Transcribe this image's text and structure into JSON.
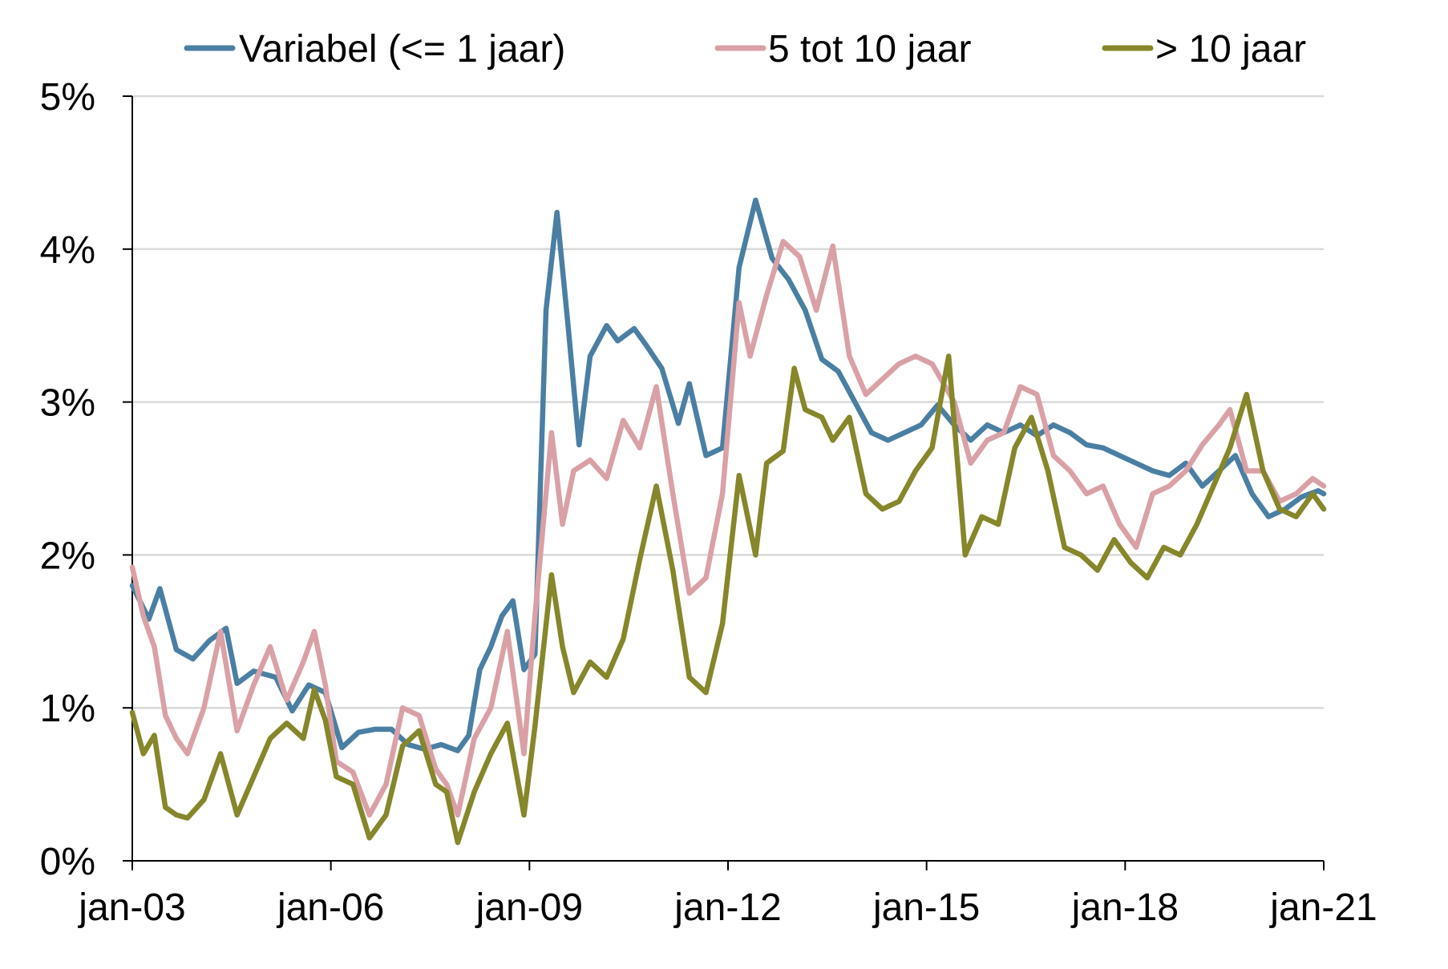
{
  "chart_data": {
    "type": "line",
    "title": "",
    "xlabel": "",
    "ylabel": "",
    "x_ticks": [
      "jan-03",
      "jan-06",
      "jan-09",
      "jan-12",
      "jan-15",
      "jan-18",
      "jan-21"
    ],
    "y_ticks": [
      "0%",
      "1%",
      "2%",
      "3%",
      "4%",
      "5%"
    ],
    "xlim": [
      "2003-01",
      "2021-01"
    ],
    "ylim": [
      0,
      5
    ],
    "grid": "horizontal",
    "legend_position": "top",
    "series": [
      {
        "name": "Variabel (<= 1 jaar)",
        "color": "#4a7fa3",
        "points": [
          [
            "2003-01",
            1.8
          ],
          [
            "2003-04",
            1.58
          ],
          [
            "2003-06",
            1.78
          ],
          [
            "2003-09",
            1.38
          ],
          [
            "2003-12",
            1.32
          ],
          [
            "2004-03",
            1.44
          ],
          [
            "2004-06",
            1.52
          ],
          [
            "2004-08",
            1.16
          ],
          [
            "2004-11",
            1.24
          ],
          [
            "2005-03",
            1.2
          ],
          [
            "2005-06",
            0.98
          ],
          [
            "2005-09",
            1.15
          ],
          [
            "2005-12",
            1.1
          ],
          [
            "2006-03",
            0.74
          ],
          [
            "2006-06",
            0.84
          ],
          [
            "2006-09",
            0.86
          ],
          [
            "2006-12",
            0.86
          ],
          [
            "2007-03",
            0.76
          ],
          [
            "2007-06",
            0.73
          ],
          [
            "2007-09",
            0.76
          ],
          [
            "2007-12",
            0.72
          ],
          [
            "2008-02",
            0.82
          ],
          [
            "2008-04",
            1.25
          ],
          [
            "2008-06",
            1.4
          ],
          [
            "2008-08",
            1.6
          ],
          [
            "2008-10",
            1.7
          ],
          [
            "2008-12",
            1.25
          ],
          [
            "2009-02",
            1.35
          ],
          [
            "2009-04",
            3.6
          ],
          [
            "2009-06",
            4.24
          ],
          [
            "2009-08",
            3.5
          ],
          [
            "2009-10",
            2.72
          ],
          [
            "2009-12",
            3.3
          ],
          [
            "2010-03",
            3.5
          ],
          [
            "2010-05",
            3.4
          ],
          [
            "2010-08",
            3.48
          ],
          [
            "2010-10",
            3.38
          ],
          [
            "2011-01",
            3.22
          ],
          [
            "2011-04",
            2.86
          ],
          [
            "2011-06",
            3.12
          ],
          [
            "2011-09",
            2.65
          ],
          [
            "2011-12",
            2.7
          ],
          [
            "2012-03",
            3.88
          ],
          [
            "2012-06",
            4.32
          ],
          [
            "2012-09",
            3.94
          ],
          [
            "2012-12",
            3.8
          ],
          [
            "2013-03",
            3.6
          ],
          [
            "2013-06",
            3.28
          ],
          [
            "2013-09",
            3.2
          ],
          [
            "2013-12",
            3.0
          ],
          [
            "2014-03",
            2.8
          ],
          [
            "2014-06",
            2.75
          ],
          [
            "2014-09",
            2.8
          ],
          [
            "2014-12",
            2.85
          ],
          [
            "2015-03",
            2.98
          ],
          [
            "2015-06",
            2.85
          ],
          [
            "2015-09",
            2.75
          ],
          [
            "2015-12",
            2.85
          ],
          [
            "2016-03",
            2.8
          ],
          [
            "2016-06",
            2.85
          ],
          [
            "2016-09",
            2.78
          ],
          [
            "2016-12",
            2.85
          ],
          [
            "2017-03",
            2.8
          ],
          [
            "2017-06",
            2.72
          ],
          [
            "2017-09",
            2.7
          ],
          [
            "2017-12",
            2.65
          ],
          [
            "2018-03",
            2.6
          ],
          [
            "2018-06",
            2.55
          ],
          [
            "2018-09",
            2.52
          ],
          [
            "2018-12",
            2.6
          ],
          [
            "2019-03",
            2.45
          ],
          [
            "2019-06",
            2.55
          ],
          [
            "2019-09",
            2.65
          ],
          [
            "2019-12",
            2.4
          ],
          [
            "2020-03",
            2.25
          ],
          [
            "2020-06",
            2.3
          ],
          [
            "2020-09",
            2.38
          ],
          [
            "2020-12",
            2.42
          ],
          [
            "2021-01",
            2.4
          ]
        ]
      },
      {
        "name": "5 tot 10 jaar",
        "color": "#d9a1a6",
        "points": [
          [
            "2003-01",
            1.92
          ],
          [
            "2003-03",
            1.6
          ],
          [
            "2003-05",
            1.4
          ],
          [
            "2003-07",
            0.95
          ],
          [
            "2003-09",
            0.8
          ],
          [
            "2003-11",
            0.7
          ],
          [
            "2004-02",
            1.0
          ],
          [
            "2004-05",
            1.5
          ],
          [
            "2004-08",
            0.85
          ],
          [
            "2004-11",
            1.15
          ],
          [
            "2005-02",
            1.4
          ],
          [
            "2005-05",
            1.05
          ],
          [
            "2005-08",
            1.3
          ],
          [
            "2005-10",
            1.5
          ],
          [
            "2005-12",
            1.15
          ],
          [
            "2006-02",
            0.65
          ],
          [
            "2006-05",
            0.58
          ],
          [
            "2006-08",
            0.3
          ],
          [
            "2006-11",
            0.5
          ],
          [
            "2007-02",
            1.0
          ],
          [
            "2007-05",
            0.95
          ],
          [
            "2007-08",
            0.6
          ],
          [
            "2007-10",
            0.5
          ],
          [
            "2007-12",
            0.3
          ],
          [
            "2008-03",
            0.8
          ],
          [
            "2008-06",
            1.0
          ],
          [
            "2008-09",
            1.5
          ],
          [
            "2008-12",
            0.7
          ],
          [
            "2009-02",
            1.6
          ],
          [
            "2009-05",
            2.8
          ],
          [
            "2009-07",
            2.2
          ],
          [
            "2009-09",
            2.55
          ],
          [
            "2009-12",
            2.62
          ],
          [
            "2010-03",
            2.5
          ],
          [
            "2010-06",
            2.88
          ],
          [
            "2010-09",
            2.7
          ],
          [
            "2010-12",
            3.1
          ],
          [
            "2011-03",
            2.4
          ],
          [
            "2011-06",
            1.75
          ],
          [
            "2011-09",
            1.85
          ],
          [
            "2011-12",
            2.4
          ],
          [
            "2012-03",
            3.65
          ],
          [
            "2012-05",
            3.3
          ],
          [
            "2012-08",
            3.7
          ],
          [
            "2012-11",
            4.05
          ],
          [
            "2013-02",
            3.95
          ],
          [
            "2013-05",
            3.6
          ],
          [
            "2013-08",
            4.02
          ],
          [
            "2013-11",
            3.3
          ],
          [
            "2014-02",
            3.05
          ],
          [
            "2014-05",
            3.15
          ],
          [
            "2014-08",
            3.25
          ],
          [
            "2014-11",
            3.3
          ],
          [
            "2015-02",
            3.25
          ],
          [
            "2015-06",
            3.0
          ],
          [
            "2015-09",
            2.6
          ],
          [
            "2015-12",
            2.75
          ],
          [
            "2016-03",
            2.8
          ],
          [
            "2016-06",
            3.1
          ],
          [
            "2016-09",
            3.05
          ],
          [
            "2016-12",
            2.65
          ],
          [
            "2017-03",
            2.55
          ],
          [
            "2017-06",
            2.4
          ],
          [
            "2017-09",
            2.45
          ],
          [
            "2017-12",
            2.2
          ],
          [
            "2018-03",
            2.05
          ],
          [
            "2018-06",
            2.4
          ],
          [
            "2018-09",
            2.45
          ],
          [
            "2018-12",
            2.55
          ],
          [
            "2019-03",
            2.72
          ],
          [
            "2019-06",
            2.85
          ],
          [
            "2019-08",
            2.95
          ],
          [
            "2019-11",
            2.55
          ],
          [
            "2020-02",
            2.55
          ],
          [
            "2020-05",
            2.35
          ],
          [
            "2020-08",
            2.4
          ],
          [
            "2020-11",
            2.5
          ],
          [
            "2021-01",
            2.45
          ]
        ]
      },
      {
        "name": "> 10 jaar",
        "color": "#86862a",
        "points": [
          [
            "2003-01",
            0.97
          ],
          [
            "2003-03",
            0.7
          ],
          [
            "2003-05",
            0.82
          ],
          [
            "2003-07",
            0.35
          ],
          [
            "2003-09",
            0.3
          ],
          [
            "2003-11",
            0.28
          ],
          [
            "2004-02",
            0.4
          ],
          [
            "2004-05",
            0.7
          ],
          [
            "2004-08",
            0.3
          ],
          [
            "2004-11",
            0.55
          ],
          [
            "2005-02",
            0.8
          ],
          [
            "2005-05",
            0.9
          ],
          [
            "2005-08",
            0.8
          ],
          [
            "2005-10",
            1.12
          ],
          [
            "2005-12",
            0.92
          ],
          [
            "2006-02",
            0.55
          ],
          [
            "2006-05",
            0.5
          ],
          [
            "2006-08",
            0.15
          ],
          [
            "2006-11",
            0.3
          ],
          [
            "2007-02",
            0.75
          ],
          [
            "2007-05",
            0.85
          ],
          [
            "2007-08",
            0.5
          ],
          [
            "2007-10",
            0.45
          ],
          [
            "2007-12",
            0.12
          ],
          [
            "2008-03",
            0.45
          ],
          [
            "2008-06",
            0.7
          ],
          [
            "2008-09",
            0.9
          ],
          [
            "2008-12",
            0.3
          ],
          [
            "2009-02",
            0.88
          ],
          [
            "2009-05",
            1.87
          ],
          [
            "2009-07",
            1.4
          ],
          [
            "2009-09",
            1.1
          ],
          [
            "2009-12",
            1.3
          ],
          [
            "2010-03",
            1.2
          ],
          [
            "2010-06",
            1.45
          ],
          [
            "2010-09",
            1.97
          ],
          [
            "2010-12",
            2.45
          ],
          [
            "2011-03",
            1.9
          ],
          [
            "2011-06",
            1.2
          ],
          [
            "2011-09",
            1.1
          ],
          [
            "2011-12",
            1.55
          ],
          [
            "2012-03",
            2.52
          ],
          [
            "2012-06",
            2.0
          ],
          [
            "2012-08",
            2.6
          ],
          [
            "2012-11",
            2.68
          ],
          [
            "2013-01",
            3.22
          ],
          [
            "2013-03",
            2.95
          ],
          [
            "2013-06",
            2.9
          ],
          [
            "2013-08",
            2.75
          ],
          [
            "2013-11",
            2.9
          ],
          [
            "2014-02",
            2.4
          ],
          [
            "2014-05",
            2.3
          ],
          [
            "2014-08",
            2.35
          ],
          [
            "2014-11",
            2.55
          ],
          [
            "2015-02",
            2.7
          ],
          [
            "2015-05",
            3.3
          ],
          [
            "2015-08",
            2.0
          ],
          [
            "2015-11",
            2.25
          ],
          [
            "2016-02",
            2.2
          ],
          [
            "2016-05",
            2.7
          ],
          [
            "2016-08",
            2.9
          ],
          [
            "2016-11",
            2.55
          ],
          [
            "2017-02",
            2.05
          ],
          [
            "2017-05",
            2.0
          ],
          [
            "2017-08",
            1.9
          ],
          [
            "2017-11",
            2.1
          ],
          [
            "2018-02",
            1.95
          ],
          [
            "2018-05",
            1.85
          ],
          [
            "2018-08",
            2.05
          ],
          [
            "2018-11",
            2.0
          ],
          [
            "2019-02",
            2.2
          ],
          [
            "2019-05",
            2.45
          ],
          [
            "2019-08",
            2.7
          ],
          [
            "2019-11",
            3.05
          ],
          [
            "2020-02",
            2.55
          ],
          [
            "2020-05",
            2.3
          ],
          [
            "2020-08",
            2.25
          ],
          [
            "2020-11",
            2.4
          ],
          [
            "2021-01",
            2.3
          ]
        ]
      }
    ]
  }
}
